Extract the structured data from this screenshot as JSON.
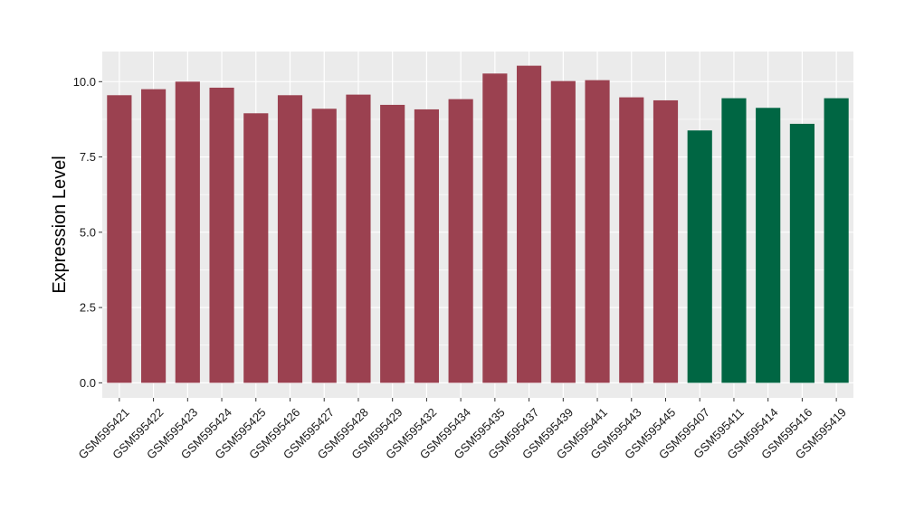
{
  "chart_data": {
    "type": "bar",
    "title": "",
    "xlabel": "",
    "ylabel": "Expression Level",
    "ylim": [
      -0.5,
      11
    ],
    "yticks": [
      0.0,
      2.5,
      5.0,
      7.5,
      10.0
    ],
    "ytick_labels": [
      "0.0",
      "2.5",
      "5.0",
      "7.5",
      "10.0"
    ],
    "grid": true,
    "legend": "none",
    "categories": [
      "GSM595421",
      "GSM595422",
      "GSM595423",
      "GSM595424",
      "GSM595425",
      "GSM595426",
      "GSM595427",
      "GSM595428",
      "GSM595429",
      "GSM595432",
      "GSM595434",
      "GSM595435",
      "GSM595437",
      "GSM595439",
      "GSM595441",
      "GSM595443",
      "GSM595445",
      "GSM595407",
      "GSM595411",
      "GSM595414",
      "GSM595416",
      "GSM595419"
    ],
    "values": [
      9.55,
      9.75,
      10.0,
      9.8,
      8.95,
      9.55,
      9.1,
      9.57,
      9.23,
      9.08,
      9.42,
      10.27,
      10.53,
      10.02,
      10.05,
      9.48,
      9.38,
      8.38,
      9.45,
      9.13,
      8.6,
      9.45
    ],
    "bar_colors": [
      "#9b4150",
      "#9b4150",
      "#9b4150",
      "#9b4150",
      "#9b4150",
      "#9b4150",
      "#9b4150",
      "#9b4150",
      "#9b4150",
      "#9b4150",
      "#9b4150",
      "#9b4150",
      "#9b4150",
      "#9b4150",
      "#9b4150",
      "#9b4150",
      "#9b4150",
      "#006643",
      "#006643",
      "#006643",
      "#006643",
      "#006643"
    ],
    "panel_background": "#ebebeb",
    "grid_color": "#ffffff"
  }
}
